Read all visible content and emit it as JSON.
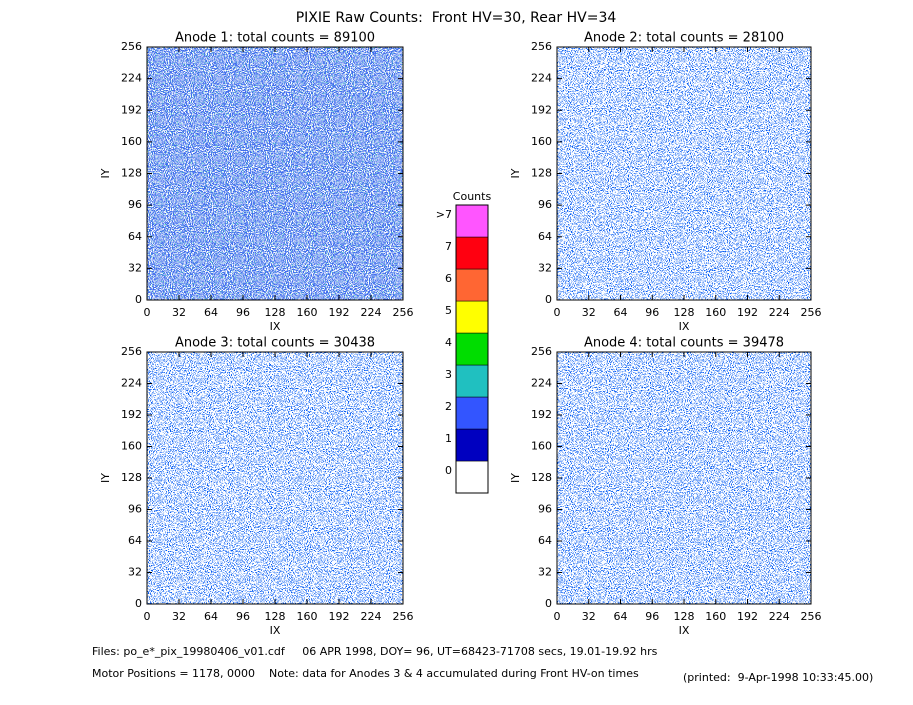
{
  "title": "PIXIE Raw Counts:  Front HV=30, Rear HV=34",
  "chart_data": [
    {
      "type": "heatmap",
      "title": "Anode 1: total counts = 89100",
      "x_label": "IX",
      "y_label": "IY",
      "xlim": [
        0,
        256
      ],
      "ylim": [
        0,
        256
      ],
      "xticks": [
        0,
        32,
        64,
        96,
        128,
        160,
        192,
        224,
        256
      ],
      "yticks": [
        0,
        32,
        64,
        96,
        128,
        160,
        192,
        224,
        256
      ]
    },
    {
      "type": "heatmap",
      "title": "Anode 2: total counts = 28100",
      "x_label": "IX",
      "y_label": "IY",
      "xlim": [
        0,
        256
      ],
      "ylim": [
        0,
        256
      ],
      "xticks": [
        0,
        32,
        64,
        96,
        128,
        160,
        192,
        224,
        256
      ],
      "yticks": [
        0,
        32,
        64,
        96,
        128,
        160,
        192,
        224,
        256
      ]
    },
    {
      "type": "heatmap",
      "title": "Anode 3: total counts = 30438",
      "x_label": "IX",
      "y_label": "IY",
      "xlim": [
        0,
        256
      ],
      "ylim": [
        0,
        256
      ],
      "xticks": [
        0,
        32,
        64,
        96,
        128,
        160,
        192,
        224,
        256
      ],
      "yticks": [
        0,
        32,
        64,
        96,
        128,
        160,
        192,
        224,
        256
      ]
    },
    {
      "type": "heatmap",
      "title": "Anode 4: total counts = 39478",
      "x_label": "IX",
      "y_label": "IY",
      "xlim": [
        0,
        256
      ],
      "ylim": [
        0,
        256
      ],
      "xticks": [
        0,
        32,
        64,
        96,
        128,
        160,
        192,
        224,
        256
      ],
      "yticks": [
        0,
        32,
        64,
        96,
        128,
        160,
        192,
        224,
        256
      ]
    }
  ],
  "colorbar": {
    "title": "Counts",
    "labels": [
      "0",
      "1",
      "2",
      "3",
      "4",
      "5",
      "6",
      "7",
      ">7"
    ],
    "colors": [
      "#ffffff",
      "#0000c0",
      "#3355ff",
      "#20c0c0",
      "#00dd00",
      "#ffff00",
      "#ff6633",
      "#ff0010",
      "#ff55ff"
    ]
  },
  "footer": {
    "files": "Files: po_e*_pix_19980406_v01.cdf     06 APR 1998, DOY= 96, UT=68423-71708 secs, 19.01-19.92 hrs",
    "motor": "Motor Positions = 1178, 0000    Note: data for Anodes 3 & 4 accumulated during Front HV-on times",
    "printed": "(printed:  9-Apr-1998 10:33:45.00)"
  }
}
